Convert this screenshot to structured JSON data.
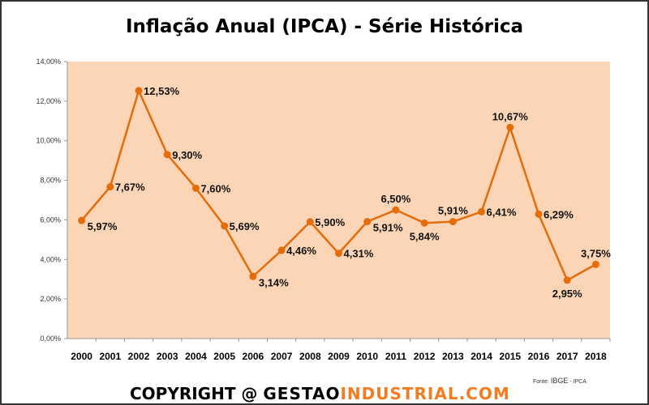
{
  "chart_data": {
    "type": "line",
    "title": "Inflação Anual (IPCA) - Série Histórica",
    "xlabel": "",
    "ylabel": "",
    "categories": [
      "2000",
      "2001",
      "2002",
      "2003",
      "2004",
      "2005",
      "2006",
      "2007",
      "2008",
      "2009",
      "2010",
      "2011",
      "2012",
      "2013",
      "2014",
      "2015",
      "2016",
      "2017",
      "2018"
    ],
    "series": [
      {
        "name": "IPCA",
        "values": [
          5.97,
          7.67,
          12.53,
          9.3,
          7.6,
          5.69,
          3.14,
          4.46,
          5.9,
          4.31,
          5.91,
          6.5,
          5.84,
          5.91,
          6.41,
          10.67,
          6.29,
          2.95,
          3.75
        ],
        "labels": [
          "5,97%",
          "7,67%",
          "12,53%",
          "9,30%",
          "7,60%",
          "5,69%",
          "3,14%",
          "4,46%",
          "5,90%",
          "4,31%",
          "5,91%",
          "6,50%",
          "5,84%",
          "5,91%",
          "6,41%",
          "10,67%",
          "6,29%",
          "2,95%",
          "3,75%"
        ],
        "label_positions": [
          "right-below",
          "right",
          "right",
          "right",
          "right",
          "right",
          "right-below",
          "right",
          "right",
          "right",
          "right-below",
          "above",
          "below",
          "above",
          "right",
          "above",
          "right",
          "below",
          "above"
        ],
        "color": "#E46C0A"
      }
    ],
    "ylim": [
      0,
      14
    ],
    "yticks": [
      0,
      2,
      4,
      6,
      8,
      10,
      12,
      14
    ],
    "ytick_labels": [
      "0,00%",
      "2,00%",
      "4,00%",
      "6,00%",
      "8,00%",
      "10,00%",
      "12,00%",
      "14,00%"
    ],
    "grid": false,
    "plot_background": "#FBD5B5"
  },
  "source": {
    "prefix": "Fonte:",
    "org": "IBGE",
    "suffix": "- IPCA"
  },
  "copyright": {
    "part1": "COPYRIGHT @ ",
    "part2": "GESTAO",
    "part3": "INDUSTRIAL.COM"
  }
}
